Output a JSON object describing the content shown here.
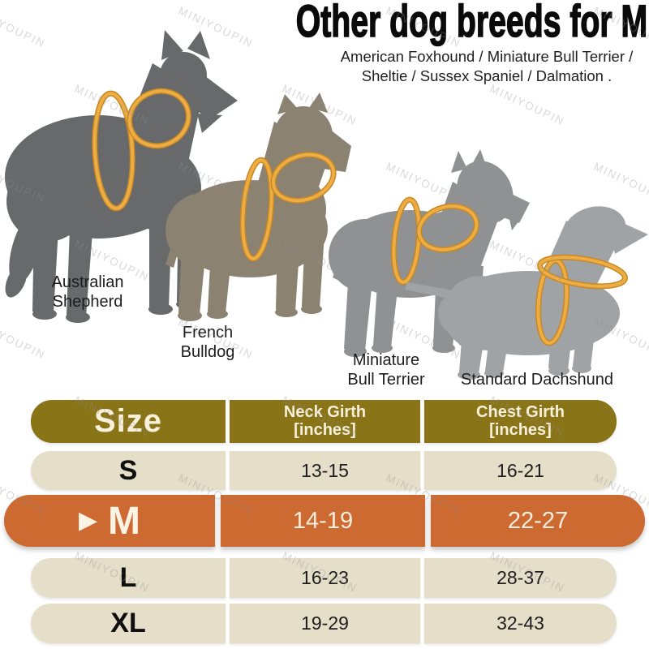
{
  "title": "Other dog breeds for M",
  "subtitle": {
    "line1": "American Foxhound / Miniature Bull Terrier /",
    "line2": "Sheltie / Sussex Spaniel / Dalmation ."
  },
  "watermark": "MINIYOUPIN",
  "dogs": [
    {
      "name": "Australian Shepherd",
      "label_line1": "Australian",
      "label_line2": "Shepherd"
    },
    {
      "name": "French Bulldog",
      "label_line1": "French",
      "label_line2": "Bulldog"
    },
    {
      "name": "Miniature Bull Terrier",
      "label_line1": "Miniature",
      "label_line2": "Bull Terrier"
    },
    {
      "name": "Standard Dachshund",
      "label_line1": "Standard Dachshund",
      "label_line2": ""
    }
  ],
  "size_table": {
    "selected_marker": "▶",
    "header": {
      "size": "Size",
      "neck_line1": "Neck Girth",
      "neck_line2": "[inches]",
      "chest_line1": "Chest Girth",
      "chest_line2": "[inches]"
    },
    "rows": [
      {
        "size": "S",
        "neck": "13-15",
        "chest": "16-21",
        "highlighted": false
      },
      {
        "size": "M",
        "neck": "14-19",
        "chest": "22-27",
        "highlighted": true
      },
      {
        "size": "L",
        "neck": "16-23",
        "chest": "28-37",
        "highlighted": false
      },
      {
        "size": "XL",
        "neck": "19-29",
        "chest": "32-43",
        "highlighted": false
      }
    ]
  },
  "colors": {
    "table_header_bg": "#8A7418",
    "row_bg": "#E5DFCA",
    "highlight_bg": "#CD6A31",
    "harness_ring": "#E8A83E",
    "header_text": "#F7F0DA",
    "highlight_text": "#F8EDDC",
    "dog_silhouettes": [
      "#67696B",
      "#8B8272",
      "#8F9193",
      "#A0A3A6"
    ]
  }
}
